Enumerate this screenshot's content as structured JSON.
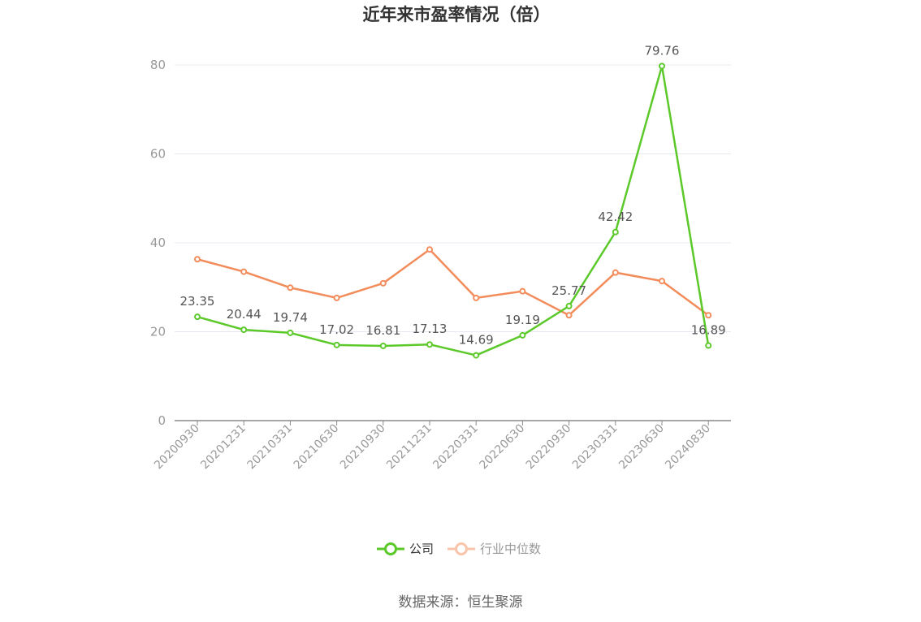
{
  "chart_data": {
    "type": "line",
    "title": "近年来市盈率情况（倍）",
    "categories": [
      "20200930",
      "20201231",
      "20210331",
      "20210630",
      "20210930",
      "20211231",
      "20220331",
      "20220630",
      "20220930",
      "20230331",
      "20230630",
      "20240830"
    ],
    "series": [
      {
        "name": "公司",
        "color": "#5cc92a",
        "values": [
          23.35,
          20.44,
          19.74,
          17.02,
          16.81,
          17.13,
          14.69,
          19.19,
          25.77,
          42.42,
          79.76,
          16.89
        ],
        "labels": [
          "23.35",
          "20.44",
          "19.74",
          "17.02",
          "16.81",
          "17.13",
          "14.69",
          "19.19",
          "25.77",
          "42.42",
          "79.76",
          "16.89"
        ]
      },
      {
        "name": "行业中位数",
        "color": "#f28c5b",
        "values": [
          36.3,
          33.5,
          29.9,
          27.6,
          30.9,
          38.5,
          27.6,
          29.1,
          23.7,
          33.3,
          31.4,
          23.7
        ]
      }
    ],
    "ylim": [
      0,
      80
    ],
    "yticks": [
      "0",
      "20",
      "40",
      "60",
      "80"
    ],
    "grid": true,
    "legend_position": "bottom-center",
    "source": "数据来源：恒生聚源"
  }
}
